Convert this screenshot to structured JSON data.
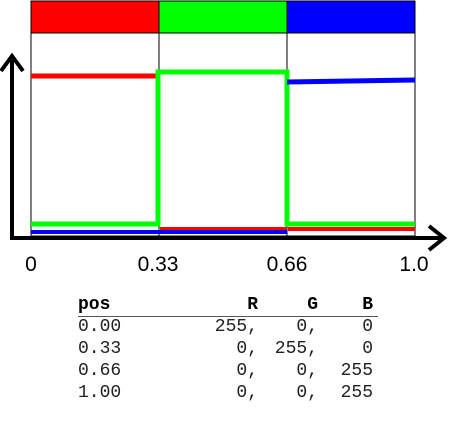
{
  "diagram": {
    "segment_colors": [
      "#ff0000",
      "#00ff00",
      "#0000ff"
    ],
    "series_colors": {
      "R": "#ff0000",
      "G": "#00ff00",
      "B": "#0000ff"
    },
    "tick_labels": [
      "0",
      "0.33",
      "0.66",
      "1.0"
    ]
  },
  "chart_data": {
    "type": "line",
    "x": [
      0,
      0.33,
      0.66,
      1.0
    ],
    "series": [
      {
        "name": "R",
        "color": "#ff0000",
        "points": [
          [
            0,
            255
          ],
          [
            0.33,
            255
          ],
          [
            0.33,
            0
          ],
          [
            0.66,
            0
          ],
          [
            0.66,
            0
          ],
          [
            1.0,
            0
          ]
        ]
      },
      {
        "name": "G",
        "color": "#00ff00",
        "points": [
          [
            0,
            0
          ],
          [
            0.33,
            0
          ],
          [
            0.33,
            255
          ],
          [
            0.66,
            255
          ],
          [
            0.66,
            0
          ],
          [
            1.0,
            0
          ]
        ]
      },
      {
        "name": "B",
        "color": "#0000ff",
        "points": [
          [
            0,
            0
          ],
          [
            0.33,
            0
          ],
          [
            0.66,
            0
          ],
          [
            0.66,
            255
          ],
          [
            1.0,
            255
          ]
        ]
      }
    ],
    "ylim": [
      0,
      255
    ]
  },
  "table": {
    "headers": [
      "pos",
      "R",
      "G",
      "B"
    ],
    "rows": [
      [
        "0.00",
        "255,",
        "0,",
        "0"
      ],
      [
        "0.33",
        "0,",
        "255,",
        "0"
      ],
      [
        "0.66",
        "0,",
        "0,",
        "255"
      ],
      [
        "1.00",
        "0,",
        "0,",
        "255"
      ]
    ]
  }
}
